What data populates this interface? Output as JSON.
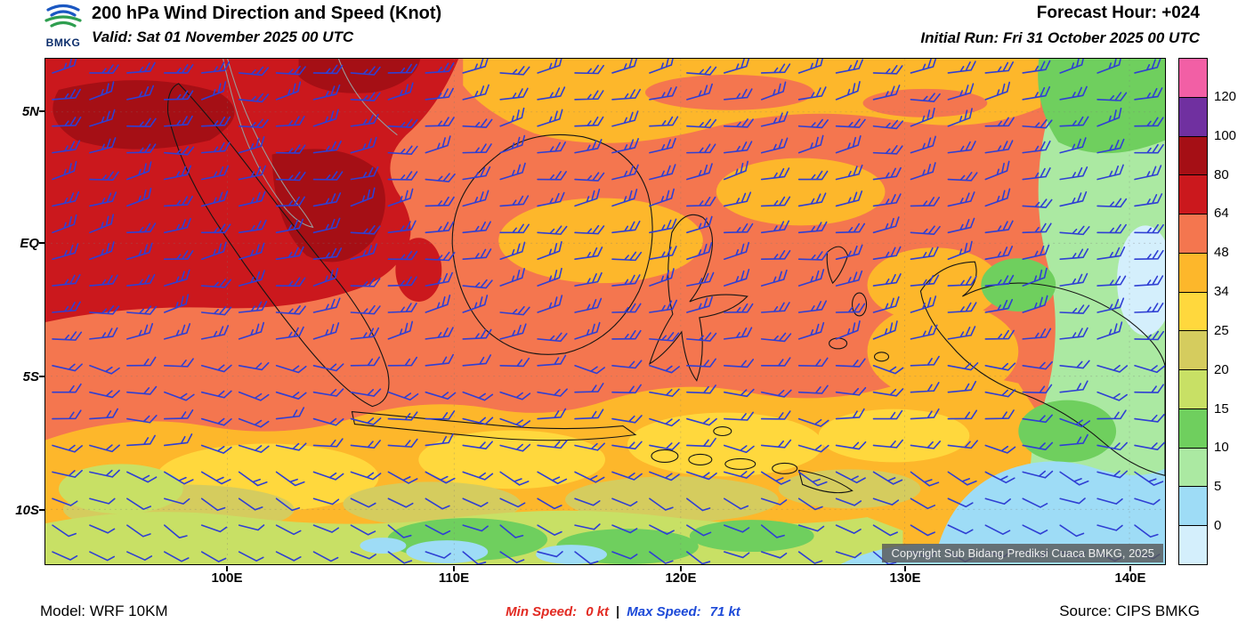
{
  "header": {
    "logo_text": "BMKG",
    "title": "200 hPa Wind Direction and Speed (Knot)",
    "valid": "Valid: Sat 01 November 2025 00 UTC",
    "forecast_hour": "Forecast Hour: +024",
    "initial_run": "Initial Run: Fri 31 October 2025 00 UTC"
  },
  "map": {
    "lat_labels": [
      "5N",
      "EQ",
      "5S",
      "10S"
    ],
    "lon_labels": [
      "100E",
      "110E",
      "120E",
      "130E",
      "140E"
    ],
    "copyright": "Copyright Sub Bidang Prediksi Cuaca BMKG, 2025",
    "barb_color": "#2f3fd3"
  },
  "colorbar": {
    "labels": [
      "120",
      "100",
      "80",
      "64",
      "48",
      "34",
      "25",
      "20",
      "15",
      "10",
      "5",
      "0"
    ],
    "colors": [
      "#f25fa5",
      "#7030a0",
      "#a50f15",
      "#cb181d",
      "#f4764f",
      "#fdb72b",
      "#ffd83d",
      "#d5cc5e",
      "#c8e065",
      "#6fcf5e",
      "#abe9a2",
      "#9edcf6",
      "#d4effc"
    ]
  },
  "footer": {
    "model": "Model: WRF 10KM",
    "min_label": "Min Speed:",
    "min_value": "0 kt",
    "divider": "|",
    "max_label": "Max Speed:",
    "max_value": "71 kt",
    "source": "Source: CIPS BMKG"
  },
  "chart_data": {
    "type": "heatmap",
    "title": "200 hPa Wind Direction and Speed (Knot)",
    "variable": "200 hPa wind speed with wind barb overlay",
    "units": "knot",
    "valid_time": "Sat 01 November 2025 00 UTC",
    "initial_run": "Fri 31 October 2025 00 UTC",
    "forecast_hour": "+024",
    "model": "WRF 10KM",
    "source": "CIPS BMKG",
    "min_speed_kt": 0,
    "max_speed_kt": 71,
    "colorbar_levels_kt": [
      0,
      5,
      10,
      15,
      20,
      25,
      34,
      48,
      64,
      80,
      100,
      120
    ],
    "colorbar_colors_low_to_high": [
      "#d4effc",
      "#9edcf6",
      "#abe9a2",
      "#6fcf5e",
      "#c8e065",
      "#d5cc5e",
      "#ffd83d",
      "#fdb72b",
      "#f4764f",
      "#cb181d",
      "#a50f15",
      "#7030a0",
      "#f25fa5"
    ],
    "x_axis": {
      "label": "longitude",
      "ticks": [
        "100E",
        "110E",
        "120E",
        "130E",
        "140E"
      ]
    },
    "y_axis": {
      "label": "latitude",
      "ticks": [
        "5N",
        "EQ",
        "5S",
        "10S"
      ]
    },
    "legend_position": "right",
    "notes": "Highest speeds (64-100 kt, red/dark red) northwest over Sumatra/Malay Peninsula; 48-64 kt band across the equator; 25-48 kt across the south; light winds (0-15 kt, green/blue) in the southeast and far east"
  }
}
